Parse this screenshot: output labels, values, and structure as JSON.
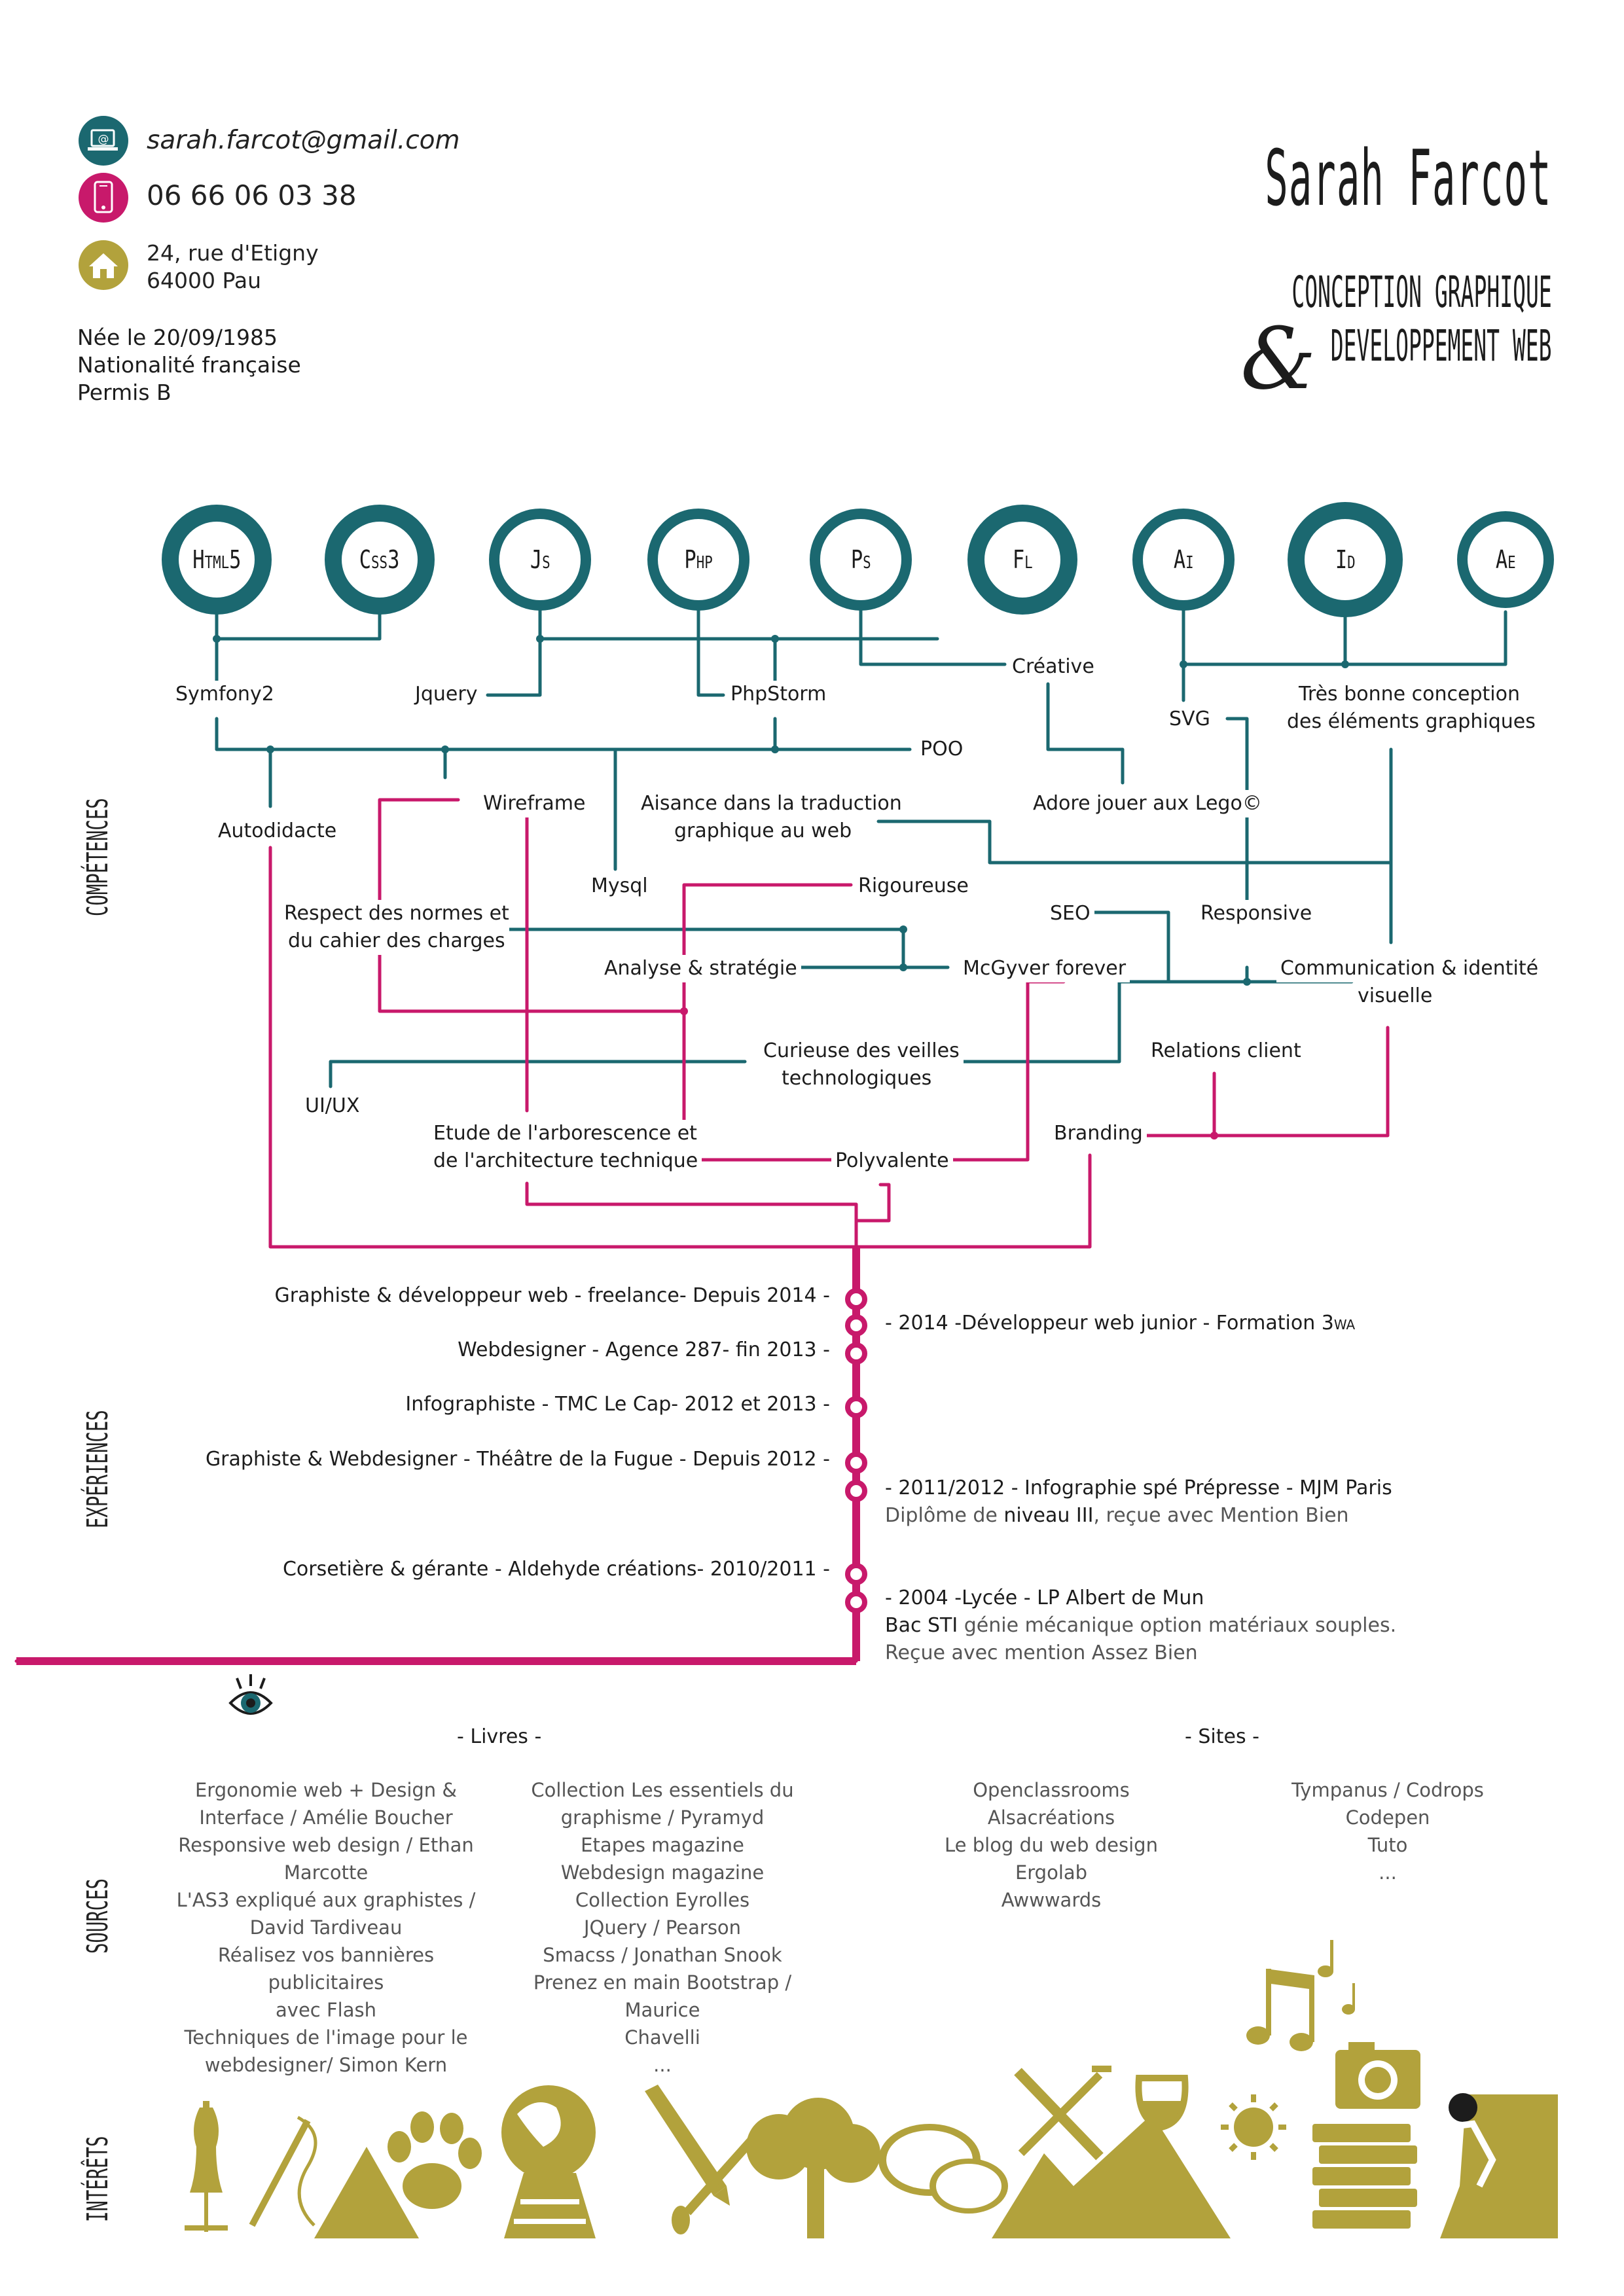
{
  "header": {
    "name": "Sarah Farcot",
    "subtitle_line1": "conception graphique",
    "ampersand": "&",
    "subtitle_line2": "developpement web"
  },
  "contact": {
    "email": "sarah.farcot@gmail.com",
    "phone": "06 66 06 03 38",
    "address_line1": "24, rue d'Etigny",
    "address_line2": "64000 Pau",
    "email_icon": "@",
    "colors": {
      "teal": "#1b6870",
      "magenta": "#c8196b",
      "olive": "#b2a23c"
    }
  },
  "personal": {
    "birth": "Née le 20/09/1985",
    "nationality": "Nationalité française",
    "license": "Permis B"
  },
  "sections": {
    "competences": "compétences",
    "experiences": "expériences",
    "sources": "sources",
    "interets": "intérêts"
  },
  "tech_circles": [
    {
      "main": "H",
      "small": "TML",
      "tail": "5"
    },
    {
      "main": "C",
      "small": "SS",
      "tail": "3"
    },
    {
      "main": "J",
      "small": "S",
      "tail": ""
    },
    {
      "main": "P",
      "small": "HP",
      "tail": ""
    },
    {
      "main": "P",
      "small": "S",
      "tail": ""
    },
    {
      "main": "F",
      "small": "L",
      "tail": ""
    },
    {
      "main": "A",
      "small": "I",
      "tail": ""
    },
    {
      "main": "I",
      "small": "D",
      "tail": ""
    },
    {
      "main": "A",
      "small": "E",
      "tail": ""
    }
  ],
  "skills": {
    "symfony": "Symfony2",
    "jquery": "Jquery",
    "phpstorm": "PhpStorm",
    "creative": "Créative",
    "svg": "SVG",
    "design_elements_1": "Très bonne conception",
    "design_elements_2": "des éléments graphiques",
    "poo": "POO",
    "autodidacte": "Autodidacte",
    "wireframe": "Wireframe",
    "translation_1": "Aisance dans la traduction",
    "translation_2": "graphique au web",
    "lego": "Adore jouer aux Lego©",
    "mysql": "Mysql",
    "rigoureuse": "Rigoureuse",
    "norms_1": "Respect des normes et",
    "norms_2": "du cahier des charges",
    "seo": "SEO",
    "responsive": "Responsive",
    "analyse": "Analyse & stratégie",
    "mcgyver": "McGyver forever",
    "communication_1": "Communication & identité",
    "communication_2": "visuelle",
    "curieuse_1": "Curieuse des veilles",
    "curieuse_2": "technologiques",
    "relations": "Relations client",
    "uiux": "UI/UX",
    "etude_1": "Etude de l'arborescence et",
    "etude_2": "de l'architecture technique",
    "polyvalente": "Polyvalente",
    "branding": "Branding"
  },
  "experiences": [
    "Graphiste & développeur web - freelance- Depuis 2014 -",
    "Webdesigner - Agence 287- fin 2013 -",
    "Infographiste - TMC Le Cap- 2012 et 2013 -",
    "Graphiste & Webdesigner - Théâtre de la Fugue - Depuis 2012 -",
    "Corsetière & gérante - Aldehyde créations- 2010/2011 -"
  ],
  "education": {
    "e1_prefix": "- 2014 -Développeur web junior - Formation 3",
    "e1_suffix": "WA",
    "e2": "- 2011/2012 - Infographie spé Prépresse - MJM Paris",
    "e2_detail_a": "Diplôme de ",
    "e2_detail_b": "niveau III",
    "e2_detail_c": ", reçue avec Mention Bien",
    "e3": "- 2004 -Lycée - LP Albert de Mun",
    "e3_detail_a": "Bac STI",
    "e3_detail_b": " génie mécanique option matériaux souples.",
    "e3_detail_2": "Reçue avec mention Assez Bien"
  },
  "sources": {
    "books_heading": "- Livres -",
    "sites_heading": "- Sites -",
    "books_col1": [
      "Ergonomie web + Design &",
      "Interface / Amélie Boucher",
      "Responsive web design / Ethan",
      "Marcotte",
      "L'AS3 expliqué aux graphistes /",
      "David Tardiveau",
      "Réalisez vos bannières publicitaires",
      "avec Flash",
      "Techniques de l'image pour le",
      "webdesigner/ Simon Kern"
    ],
    "books_col2": [
      "Collection Les essentiels du",
      "graphisme / Pyramyd",
      "Etapes magazine",
      "Webdesign magazine",
      "Collection Eyrolles",
      "JQuery / Pearson",
      "Smacss / Jonathan Snook",
      "Prenez en main Bootstrap / Maurice",
      "Chavelli",
      "..."
    ],
    "sites_col1": [
      "Openclassrooms",
      "Alsacréations",
      "Le blog du web design",
      "Ergolab",
      "Awwwards"
    ],
    "sites_col2": [
      "Tympanus / Codrops",
      "Codepen",
      "Tuto",
      "..."
    ]
  },
  "interests_icons": [
    "mannequin-icon",
    "needle-thread-icon",
    "tent-icon",
    "paw-icon",
    "globe-icon",
    "railway-icon",
    "pencil-brush-icon",
    "tree-icon",
    "chat-bubbles-icon",
    "fork-knife-icon",
    "mountain-icon",
    "wine-glass-icon",
    "sun-icon",
    "books-icon",
    "climber-icon",
    "music-notes-icon",
    "camera-icon"
  ]
}
